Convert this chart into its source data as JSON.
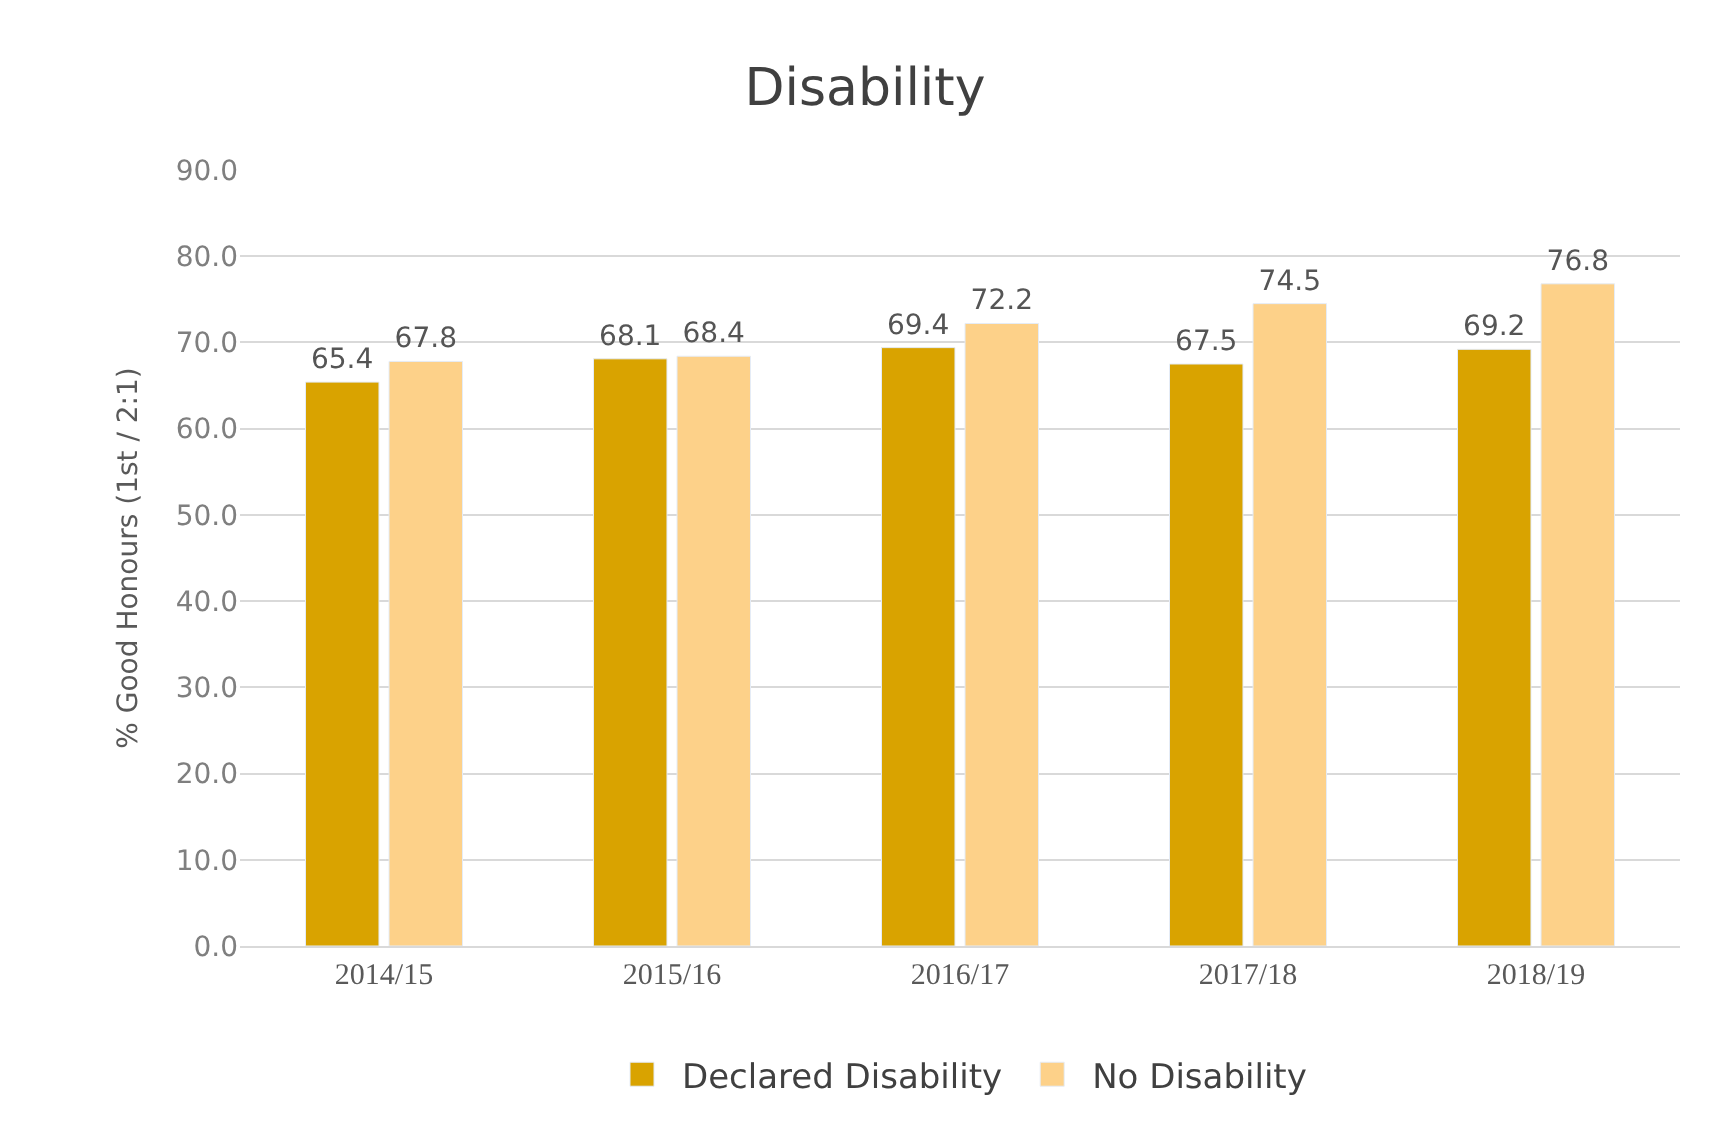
{
  "chart_data": {
    "type": "bar",
    "title": "Disability",
    "ylabel": "% Good Honours (1st / 2:1)",
    "categories": [
      "2014/15",
      "2015/16",
      "2016/17",
      "2017/18",
      "2018/19"
    ],
    "series": [
      {
        "name": "Declared Disability",
        "color": "#d9a300",
        "values": [
          65.4,
          68.1,
          69.4,
          67.5,
          69.2
        ]
      },
      {
        "name": "No Disability",
        "color": "#fdd189",
        "values": [
          67.8,
          68.4,
          72.2,
          74.5,
          76.8
        ]
      }
    ],
    "ylim": [
      0,
      90
    ],
    "yticks": [
      {
        "value": 0,
        "label": "0.0"
      },
      {
        "value": 10,
        "label": "10.0"
      },
      {
        "value": 20,
        "label": "20.0"
      },
      {
        "value": 30,
        "label": "30.0"
      },
      {
        "value": 40,
        "label": "40.0"
      },
      {
        "value": 50,
        "label": "50.0"
      },
      {
        "value": 60,
        "label": "60.0"
      },
      {
        "value": 70,
        "label": "70.0"
      },
      {
        "value": 80,
        "label": "80.0"
      },
      {
        "value": 90,
        "label": "90.0"
      }
    ],
    "grid": "y",
    "legend": "bottom",
    "data_labels": true
  }
}
